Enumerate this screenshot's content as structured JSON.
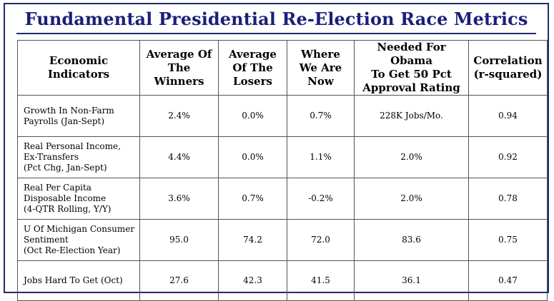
{
  "title": "Fundamental Presidential Re-Election Race Metrics",
  "headers": [
    "Economic\nIndicators",
    "Average Of\nThe\nWinners",
    "Average\nOf The\nLosers",
    "Where\nWe Are\nNow",
    "Needed For Obama\nTo Get 50 Pct\nApproval Rating",
    "Correlation\n(r-squared)"
  ],
  "rows": [
    {
      "indicator": "Growth In Non-Farm\nPayrolls (Jan-Sept)",
      "winners": "2.4%",
      "losers": "0.0%",
      "now": "0.7%",
      "needed": "228K Jobs/Mo.",
      "correlation": "0.94"
    },
    {
      "indicator": "Real Personal Income,\nEx-Transfers\n(Pct Chg, Jan-Sept)",
      "winners": "4.4%",
      "losers": "0.0%",
      "now": "1.1%",
      "needed": "2.0%",
      "correlation": "0.92"
    },
    {
      "indicator": "Real Per Capita\nDisposable Income\n(4-QTR Rolling, Y/Y)",
      "winners": "3.6%",
      "losers": "0.7%",
      "now": "-0.2%",
      "needed": "2.0%",
      "correlation": "0.78"
    },
    {
      "indicator": "U Of Michigan Consumer\nSentiment\n(Oct Re-Election Year)",
      "winners": "95.0",
      "losers": "74.2",
      "now": "72.0",
      "needed": "83.6",
      "correlation": "0.75"
    },
    {
      "indicator": "Jobs Hard To Get (Oct)",
      "winners": "27.6",
      "losers": "42.3",
      "now": "41.5",
      "needed": "36.1",
      "correlation": "0.47"
    }
  ]
}
